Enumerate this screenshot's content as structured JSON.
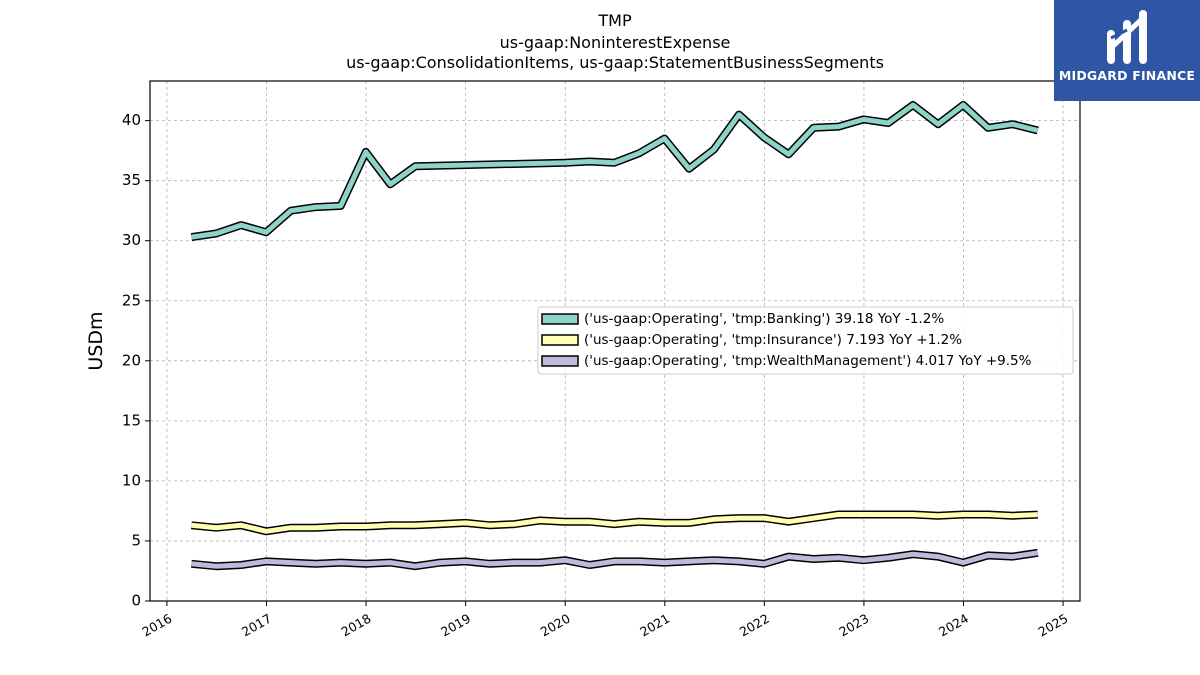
{
  "chart_data": {
    "type": "line",
    "title_lines": [
      "TMP",
      "us-gaap:NoninterestExpense",
      "us-gaap:ConsolidationItems, us-gaap:StatementBusinessSegments"
    ],
    "xlabel": "",
    "ylabel": "USDm",
    "xlim": [
      2015.83,
      2025.17
    ],
    "ylim": [
      0,
      43.3
    ],
    "x_ticks": [
      "2016",
      "2017",
      "2018",
      "2019",
      "2020",
      "2021",
      "2022",
      "2023",
      "2024",
      "2025"
    ],
    "y_ticks": [
      "0",
      "5",
      "10",
      "15",
      "20",
      "25",
      "30",
      "35",
      "40"
    ],
    "grid": true,
    "legend_position": "center-right",
    "series": [
      {
        "name": "('us-gaap:Operating', 'tmp:Banking') 39.18 YoY -1.2%",
        "color": "#8dd3c7",
        "x": [
          "2016-03-31",
          "2016-06-30",
          "2016-09-30",
          "2016-12-31",
          "2017-03-31",
          "2017-06-30",
          "2017-09-30",
          "2017-12-31",
          "2018-03-31",
          "2018-06-30",
          "2019-12-31",
          "2020-03-31",
          "2020-06-30",
          "2020-09-30",
          "2020-12-31",
          "2021-03-31",
          "2021-06-30",
          "2021-09-30",
          "2021-12-31",
          "2022-03-31",
          "2022-06-30",
          "2022-09-30",
          "2022-12-31",
          "2023-03-31",
          "2023-06-30",
          "2023-09-30",
          "2023-12-31",
          "2024-03-31",
          "2024-06-30",
          "2024-09-30"
        ],
        "values": [
          30.3,
          30.6,
          31.3,
          30.7,
          32.5,
          32.8,
          32.9,
          37.4,
          34.7,
          36.2,
          36.5,
          36.6,
          36.5,
          37.3,
          38.5,
          36.0,
          37.6,
          40.5,
          38.6,
          37.2,
          39.4,
          39.5,
          40.1,
          39.8,
          41.3,
          39.7,
          41.3,
          39.4,
          39.7,
          39.18
        ]
      },
      {
        "name": "('us-gaap:Operating', 'tmp:Insurance') 7.193 YoY +1.2%",
        "color": "#ffffb3",
        "x": [
          "2016-03-31",
          "2016-06-30",
          "2016-09-30",
          "2016-12-31",
          "2017-03-31",
          "2017-06-30",
          "2017-09-30",
          "2017-12-31",
          "2018-03-31",
          "2018-06-30",
          "2018-09-30",
          "2018-12-31",
          "2019-03-31",
          "2019-06-30",
          "2019-09-30",
          "2019-12-31",
          "2020-03-31",
          "2020-06-30",
          "2020-09-30",
          "2020-12-31",
          "2021-03-31",
          "2021-06-30",
          "2021-09-30",
          "2021-12-31",
          "2022-03-31",
          "2022-06-30",
          "2022-09-30",
          "2022-12-31",
          "2023-03-31",
          "2023-06-30",
          "2023-09-30",
          "2023-12-31",
          "2024-03-31",
          "2024-06-30",
          "2024-09-30"
        ],
        "values": [
          6.3,
          6.1,
          6.3,
          5.8,
          6.1,
          6.1,
          6.2,
          6.2,
          6.3,
          6.3,
          6.4,
          6.5,
          6.3,
          6.4,
          6.7,
          6.6,
          6.6,
          6.4,
          6.6,
          6.5,
          6.5,
          6.8,
          6.9,
          6.9,
          6.6,
          6.9,
          7.2,
          7.2,
          7.2,
          7.2,
          7.1,
          7.2,
          7.2,
          7.1,
          7.193
        ]
      },
      {
        "name": "('us-gaap:Operating', 'tmp:WealthManagement') 4.017 YoY +9.5%",
        "color": "#bebada",
        "x": [
          "2016-03-31",
          "2016-06-30",
          "2016-09-30",
          "2016-12-31",
          "2017-03-31",
          "2017-06-30",
          "2017-09-30",
          "2017-12-31",
          "2018-03-31",
          "2018-06-30",
          "2018-09-30",
          "2018-12-31",
          "2019-03-31",
          "2019-06-30",
          "2019-09-30",
          "2019-12-31",
          "2020-03-31",
          "2020-06-30",
          "2020-09-30",
          "2020-12-31",
          "2021-03-31",
          "2021-06-30",
          "2021-09-30",
          "2021-12-31",
          "2022-03-31",
          "2022-06-30",
          "2022-09-30",
          "2022-12-31",
          "2023-03-31",
          "2023-06-30",
          "2023-09-30",
          "2023-12-31",
          "2024-03-31",
          "2024-06-30",
          "2024-09-30"
        ],
        "values": [
          3.1,
          2.9,
          3.0,
          3.3,
          3.2,
          3.1,
          3.2,
          3.1,
          3.2,
          2.9,
          3.2,
          3.3,
          3.1,
          3.2,
          3.2,
          3.4,
          3.0,
          3.3,
          3.3,
          3.2,
          3.3,
          3.4,
          3.3,
          3.1,
          3.7,
          3.5,
          3.6,
          3.4,
          3.6,
          3.9,
          3.7,
          3.2,
          3.8,
          3.7,
          4.017
        ]
      }
    ]
  },
  "logo": {
    "text": "MIDGARD FINANCE"
  }
}
